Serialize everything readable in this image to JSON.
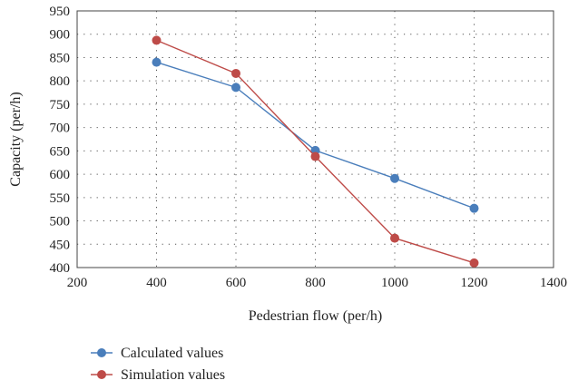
{
  "chart_data": {
    "type": "line",
    "xlabel": "Pedestrian flow (per/h)",
    "ylabel": "Capacity (per/h)",
    "xlim": [
      200,
      1400
    ],
    "ylim": [
      400,
      950
    ],
    "x_ticks": [
      "200",
      "400",
      "600",
      "800",
      "1000",
      "1200",
      "1400"
    ],
    "y_ticks": [
      "400",
      "450",
      "500",
      "550",
      "600",
      "650",
      "700",
      "750",
      "800",
      "850",
      "900",
      "950"
    ],
    "grid": "dotted",
    "legend_position": "bottom-left",
    "x": [
      400,
      600,
      800,
      1000,
      1200
    ],
    "series": [
      {
        "name": "Calculated values",
        "color": "#4a7ebb",
        "values": [
          840,
          786,
          651,
          591,
          527
        ]
      },
      {
        "name": "Simulation values",
        "color": "#be4b48",
        "values": [
          887,
          816,
          638,
          463,
          410
        ]
      }
    ]
  }
}
